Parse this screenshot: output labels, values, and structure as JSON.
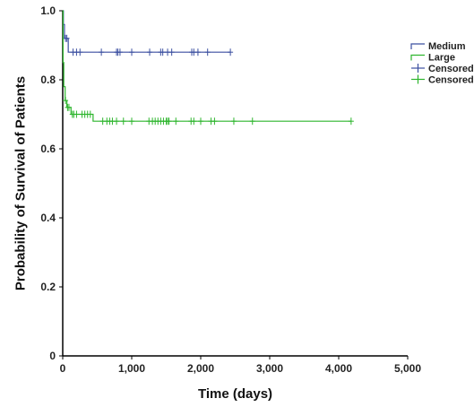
{
  "chart_data": {
    "type": "line",
    "step": true,
    "title": "",
    "xlabel": "Time (days)",
    "ylabel": "Probability of Survival of Patients",
    "xlim": [
      0,
      5000
    ],
    "ylim": [
      0,
      1.0
    ],
    "x_ticks": [
      0,
      1000,
      2000,
      3000,
      4000,
      5000
    ],
    "x_tick_labels": [
      "0",
      "1,000",
      "2,000",
      "3,000",
      "4,000",
      "5,000"
    ],
    "y_ticks": [
      0,
      0.2,
      0.4,
      0.6,
      0.8,
      1.0
    ],
    "y_tick_labels": [
      "0",
      "0.2",
      "0.4",
      "0.6",
      "0.8",
      "1.0"
    ],
    "grid": false,
    "legend_position": "top-right",
    "colors": {
      "medium": "#3b4fa0",
      "large": "#2db52d"
    },
    "series": [
      {
        "name": "Medium",
        "color": "#3b4fa0",
        "steps": [
          [
            0,
            1.0
          ],
          [
            10,
            0.96
          ],
          [
            25,
            0.92
          ],
          [
            80,
            0.88
          ],
          [
            2430,
            0.88
          ]
        ],
        "censored": [
          40,
          60,
          150,
          200,
          250,
          560,
          780,
          800,
          830,
          1000,
          1260,
          1420,
          1450,
          1520,
          1580,
          1870,
          1900,
          1960,
          2100,
          2430
        ]
      },
      {
        "name": "Large",
        "color": "#2db52d",
        "steps": [
          [
            0,
            1.0
          ],
          [
            5,
            0.85
          ],
          [
            15,
            0.78
          ],
          [
            35,
            0.74
          ],
          [
            60,
            0.72
          ],
          [
            120,
            0.7
          ],
          [
            440,
            0.68
          ],
          [
            4180,
            0.68
          ]
        ],
        "censored": [
          40,
          70,
          90,
          140,
          160,
          200,
          280,
          320,
          360,
          400,
          580,
          640,
          680,
          720,
          780,
          880,
          1000,
          1250,
          1300,
          1340,
          1380,
          1420,
          1460,
          1500,
          1520,
          1540,
          1640,
          1860,
          1900,
          2000,
          2150,
          2200,
          2480,
          2750,
          4180
        ]
      }
    ],
    "legend": [
      {
        "label": "Medium",
        "kind": "step",
        "series": 0
      },
      {
        "label": "Large",
        "kind": "step",
        "series": 1
      },
      {
        "label": "Censored",
        "kind": "censor",
        "series": 0
      },
      {
        "label": "Censored",
        "kind": "censor",
        "series": 1
      }
    ]
  }
}
